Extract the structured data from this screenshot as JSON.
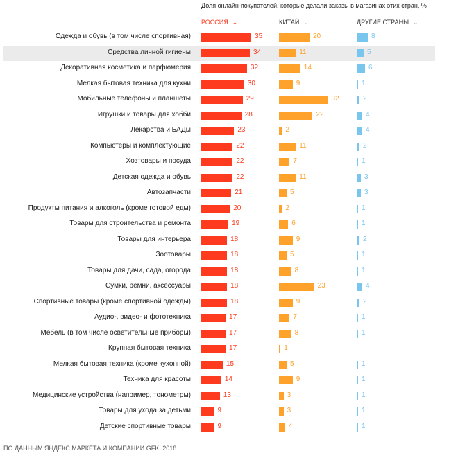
{
  "chart_data": {
    "type": "bar",
    "orientation": "horizontal",
    "subtitle": "Доля онлайн-покупателей, которые делали заказы в магазинах этих стран, %",
    "source": "ПО ДАННЫМ ЯНДЕКС.МАРКЕТА И КОМПАНИИ GFK, 2018",
    "sorted_by": "РОССИЯ",
    "highlighted_category": "Средства личной гигиены",
    "categories": [
      "Одежда и обувь (в том числе спортивная)",
      "Средства личной гигиены",
      "Декоративная косметика и парфюмерия",
      "Мелкая бытовая техника для кухни",
      "Мобильные телефоны и планшеты",
      "Игрушки и товары для хобби",
      "Лекарства и БАДы",
      "Компьютеры и комплектующие",
      "Хозтовары и посуда",
      "Детская одежда и обувь",
      "Автозапчасти",
      "Продукты питания и алкоголь (кроме готовой еды)",
      "Товары для строительства и ремонта",
      "Товары для интерьера",
      "Зоотовары",
      "Товары для дачи, сада, огорода",
      "Сумки, ремни, аксессуары",
      "Спортивные товары (кроме спортивной одежды)",
      "Аудио-, видео- и фототехника",
      "Мебель (в том числе осветительные приборы)",
      "Крупная бытовая техника",
      "Мелкая бытовая техника (кроме кухонной)",
      "Техника для красоты",
      "Медицинские устройства (например, тонометры)",
      "Товары для ухода за детьми",
      "Детские спортивные товары"
    ],
    "series": [
      {
        "name": "РОССИЯ",
        "color": "#ff3b1f",
        "values": [
          35,
          34,
          32,
          30,
          29,
          28,
          23,
          22,
          22,
          22,
          21,
          20,
          19,
          18,
          18,
          18,
          18,
          18,
          17,
          17,
          17,
          15,
          14,
          13,
          9,
          9
        ]
      },
      {
        "name": "КИТАЙ",
        "color": "#ffa22b",
        "values": [
          20,
          11,
          14,
          9,
          32,
          22,
          2,
          11,
          7,
          11,
          5,
          2,
          6,
          9,
          5,
          8,
          23,
          9,
          7,
          8,
          1,
          5,
          9,
          3,
          3,
          4
        ]
      },
      {
        "name": "ДРУГИЕ СТРАНЫ",
        "color": "#78c6ee",
        "values": [
          8,
          5,
          6,
          1,
          2,
          4,
          4,
          2,
          1,
          3,
          3,
          1,
          1,
          2,
          1,
          1,
          4,
          2,
          1,
          1,
          null,
          1,
          1,
          1,
          1,
          1
        ]
      }
    ]
  }
}
